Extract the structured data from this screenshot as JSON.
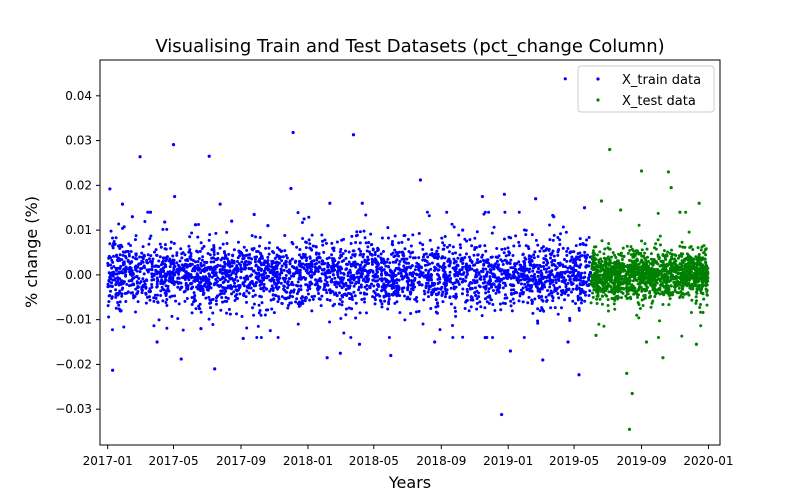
{
  "chart_data": {
    "type": "scatter",
    "title": "Visualising Train and Test Datasets (pct_change Column)",
    "xlabel": "Years",
    "ylabel": "% change (%)",
    "xlim": [
      "2016-12-18",
      "2020-01-22"
    ],
    "ylim": [
      -0.038,
      0.048
    ],
    "xticks": [
      {
        "value": "2017-01-01",
        "label": "2017-01"
      },
      {
        "value": "2017-05-01",
        "label": "2017-05"
      },
      {
        "value": "2017-09-01",
        "label": "2017-09"
      },
      {
        "value": "2018-01-01",
        "label": "2018-01"
      },
      {
        "value": "2018-05-01",
        "label": "2018-05"
      },
      {
        "value": "2018-09-01",
        "label": "2018-09"
      },
      {
        "value": "2019-01-01",
        "label": "2019-01"
      },
      {
        "value": "2019-05-01",
        "label": "2019-05"
      },
      {
        "value": "2019-09-01",
        "label": "2019-09"
      },
      {
        "value": "2020-01-01",
        "label": "2020-01"
      }
    ],
    "yticks": [
      {
        "value": -0.03,
        "label": "−0.03"
      },
      {
        "value": -0.02,
        "label": "−0.02"
      },
      {
        "value": -0.01,
        "label": "−0.01"
      },
      {
        "value": 0.0,
        "label": "0.00"
      },
      {
        "value": 0.01,
        "label": "0.01"
      },
      {
        "value": 0.02,
        "label": "0.02"
      },
      {
        "value": 0.03,
        "label": "0.03"
      },
      {
        "value": 0.04,
        "label": "0.04"
      }
    ],
    "grid": false,
    "legend_position": "top-right",
    "series": [
      {
        "name": "X_train data",
        "color": "#0000ff",
        "x_range": [
          "2017-01-01",
          "2019-06-01"
        ],
        "typical_spread": 0.0035,
        "points": [
          {
            "x": "2017-01-05",
            "y": 0.0192
          },
          {
            "x": "2017-01-10",
            "y": -0.0213
          },
          {
            "x": "2017-01-28",
            "y": 0.0158
          },
          {
            "x": "2017-02-15",
            "y": 0.013
          },
          {
            "x": "2017-03-01",
            "y": 0.0264
          },
          {
            "x": "2017-03-20",
            "y": 0.014
          },
          {
            "x": "2017-04-01",
            "y": -0.015
          },
          {
            "x": "2017-04-15",
            "y": 0.0118
          },
          {
            "x": "2017-05-01",
            "y": 0.0291
          },
          {
            "x": "2017-05-03",
            "y": 0.0175
          },
          {
            "x": "2017-05-15",
            "y": -0.0188
          },
          {
            "x": "2017-06-10",
            "y": 0.0112
          },
          {
            "x": "2017-06-20",
            "y": -0.012
          },
          {
            "x": "2017-07-05",
            "y": 0.0265
          },
          {
            "x": "2017-07-15",
            "y": -0.021
          },
          {
            "x": "2017-07-25",
            "y": 0.0158
          },
          {
            "x": "2017-08-15",
            "y": 0.012
          },
          {
            "x": "2017-09-05",
            "y": -0.0142
          },
          {
            "x": "2017-09-25",
            "y": 0.0135
          },
          {
            "x": "2017-10-20",
            "y": 0.011
          },
          {
            "x": "2017-12-01",
            "y": 0.0193
          },
          {
            "x": "2017-12-05",
            "y": 0.0318
          },
          {
            "x": "2017-12-25",
            "y": 0.0125
          },
          {
            "x": "2018-02-05",
            "y": -0.0185
          },
          {
            "x": "2018-02-10",
            "y": 0.016
          },
          {
            "x": "2018-03-01",
            "y": -0.0175
          },
          {
            "x": "2018-03-25",
            "y": 0.0313
          },
          {
            "x": "2018-04-05",
            "y": -0.0155
          },
          {
            "x": "2018-04-10",
            "y": 0.016
          },
          {
            "x": "2018-06-01",
            "y": -0.018
          },
          {
            "x": "2018-07-25",
            "y": 0.0212
          },
          {
            "x": "2018-08-20",
            "y": -0.015
          },
          {
            "x": "2018-10-10",
            "y": 0.01
          },
          {
            "x": "2018-11-15",
            "y": 0.0175
          },
          {
            "x": "2018-11-20",
            "y": -0.014
          },
          {
            "x": "2018-12-20",
            "y": -0.0312
          },
          {
            "x": "2018-12-25",
            "y": 0.018
          },
          {
            "x": "2019-01-05",
            "y": -0.017
          },
          {
            "x": "2019-02-20",
            "y": 0.017
          },
          {
            "x": "2019-03-05",
            "y": -0.019
          },
          {
            "x": "2019-03-25",
            "y": 0.013
          },
          {
            "x": "2019-04-15",
            "y": 0.0438
          },
          {
            "x": "2019-04-20",
            "y": -0.015
          },
          {
            "x": "2019-05-10",
            "y": -0.0223
          },
          {
            "x": "2019-05-20",
            "y": 0.015
          }
        ]
      },
      {
        "name": "X_test data",
        "color": "#008000",
        "x_range": [
          "2019-06-01",
          "2019-12-31"
        ],
        "typical_spread": 0.0025,
        "points": [
          {
            "x": "2019-06-10",
            "y": -0.0135
          },
          {
            "x": "2019-06-20",
            "y": 0.0165
          },
          {
            "x": "2019-07-05",
            "y": 0.028
          },
          {
            "x": "2019-07-25",
            "y": 0.0145
          },
          {
            "x": "2019-08-05",
            "y": -0.022
          },
          {
            "x": "2019-08-10",
            "y": -0.0345
          },
          {
            "x": "2019-08-15",
            "y": -0.0265
          },
          {
            "x": "2019-09-01",
            "y": 0.0232
          },
          {
            "x": "2019-09-10",
            "y": -0.015
          },
          {
            "x": "2019-10-10",
            "y": -0.0185
          },
          {
            "x": "2019-10-20",
            "y": 0.023
          },
          {
            "x": "2019-10-25",
            "y": 0.0195
          },
          {
            "x": "2019-11-10",
            "y": 0.014
          },
          {
            "x": "2019-12-10",
            "y": -0.0155
          },
          {
            "x": "2019-12-15",
            "y": 0.016
          }
        ]
      }
    ]
  }
}
